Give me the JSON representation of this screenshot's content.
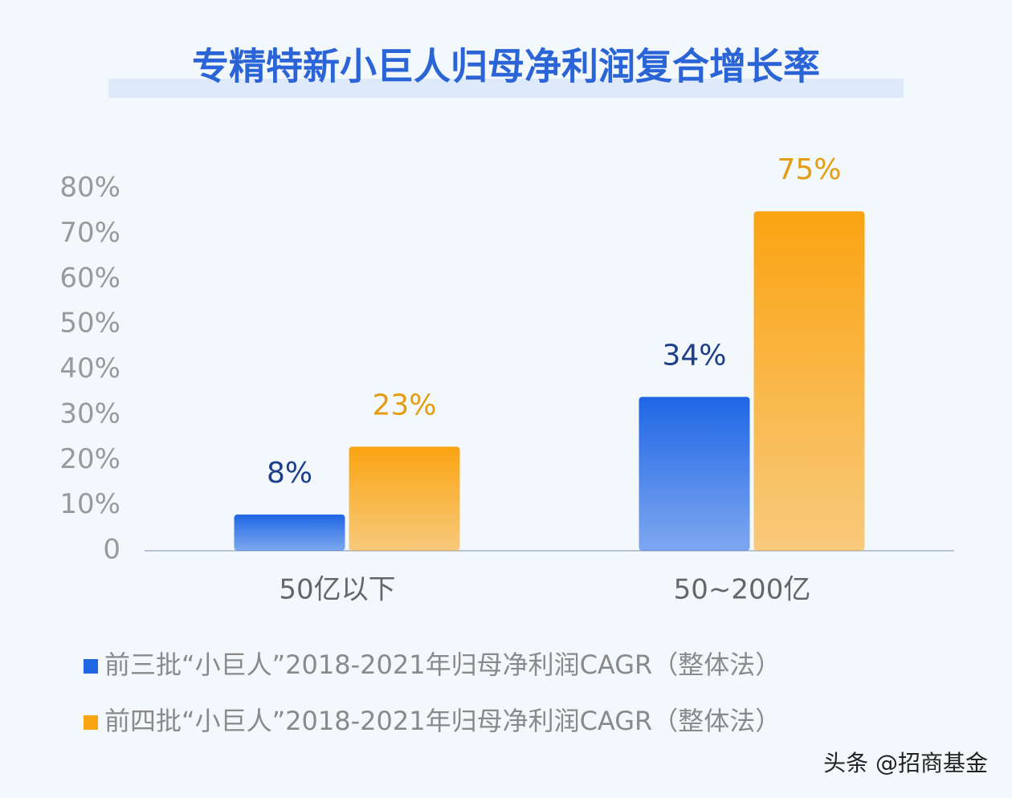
{
  "chart_data": {
    "type": "bar",
    "title": "专精特新小巨人归母净利润复合增长率",
    "categories": [
      "50亿以下",
      "50~200亿"
    ],
    "series": [
      {
        "name": "前三批“小巨人”2018-2021年归母净利润CAGR（整体法）",
        "color": "#1f66e5",
        "values": [
          8,
          34
        ],
        "value_labels": [
          "8%",
          "34%"
        ]
      },
      {
        "name": "前四批“小巨人”2018-2021年归母净利润CAGR（整体法）",
        "color": "#fba412",
        "values": [
          23,
          75
        ],
        "value_labels": [
          "23%",
          "75%"
        ]
      }
    ],
    "ylim": [
      0,
      80
    ],
    "yticks": [
      0,
      {
        "value": 10,
        "label": "10%"
      },
      {
        "value": 20,
        "label": "20%"
      },
      {
        "value": 30,
        "label": "30%"
      },
      {
        "value": 40,
        "label": "40%"
      },
      {
        "value": 50,
        "label": "50%"
      },
      {
        "value": 60,
        "label": "60%"
      },
      {
        "value": 70,
        "label": "70%"
      },
      {
        "value": 80,
        "label": "80%"
      }
    ],
    "grid": false,
    "watermark": "头条 @招商基金"
  }
}
